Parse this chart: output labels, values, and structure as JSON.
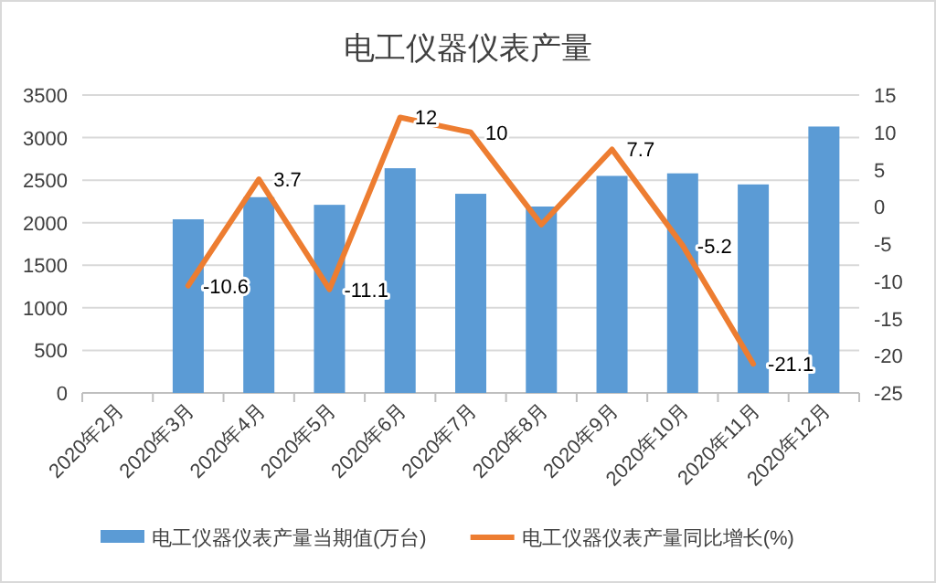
{
  "chart_data": {
    "type": "bar",
    "title": "电工仪器仪表产量",
    "categories": [
      "2020年2月",
      "2020年3月",
      "2020年4月",
      "2020年5月",
      "2020年6月",
      "2020年7月",
      "2020年8月",
      "2020年9月",
      "2020年10月",
      "2020年11月",
      "2020年12月"
    ],
    "series": [
      {
        "name": "电工仪器仪表产量当期值(万台)",
        "color": "#5b9bd5",
        "values": [
          null,
          2040,
          2300,
          2210,
          2640,
          2340,
          2190,
          2550,
          2580,
          2450,
          3130
        ]
      },
      {
        "name": "电工仪器仪表产量同比增长(%)",
        "type": "line",
        "axis": "y2",
        "color": "#ed7d31",
        "values": [
          null,
          -10.6,
          3.7,
          -11.1,
          12,
          10,
          -2.4,
          7.7,
          -5.2,
          -21.1,
          null
        ],
        "value_labels": [
          null,
          "-10.6",
          "3.7",
          "-11.1",
          "12",
          "10",
          null,
          "7.7",
          "-5.2",
          "-21.1",
          null
        ]
      }
    ],
    "ylim": [
      0,
      3500
    ],
    "yticks": [
      0,
      500,
      1000,
      1500,
      2000,
      2500,
      3000,
      3500
    ],
    "y2lim": [
      -25,
      15
    ],
    "y2ticks": [
      -25,
      -20,
      -15,
      -10,
      -5,
      0,
      5,
      10,
      15
    ],
    "grid": "y",
    "legend": "bottom"
  }
}
